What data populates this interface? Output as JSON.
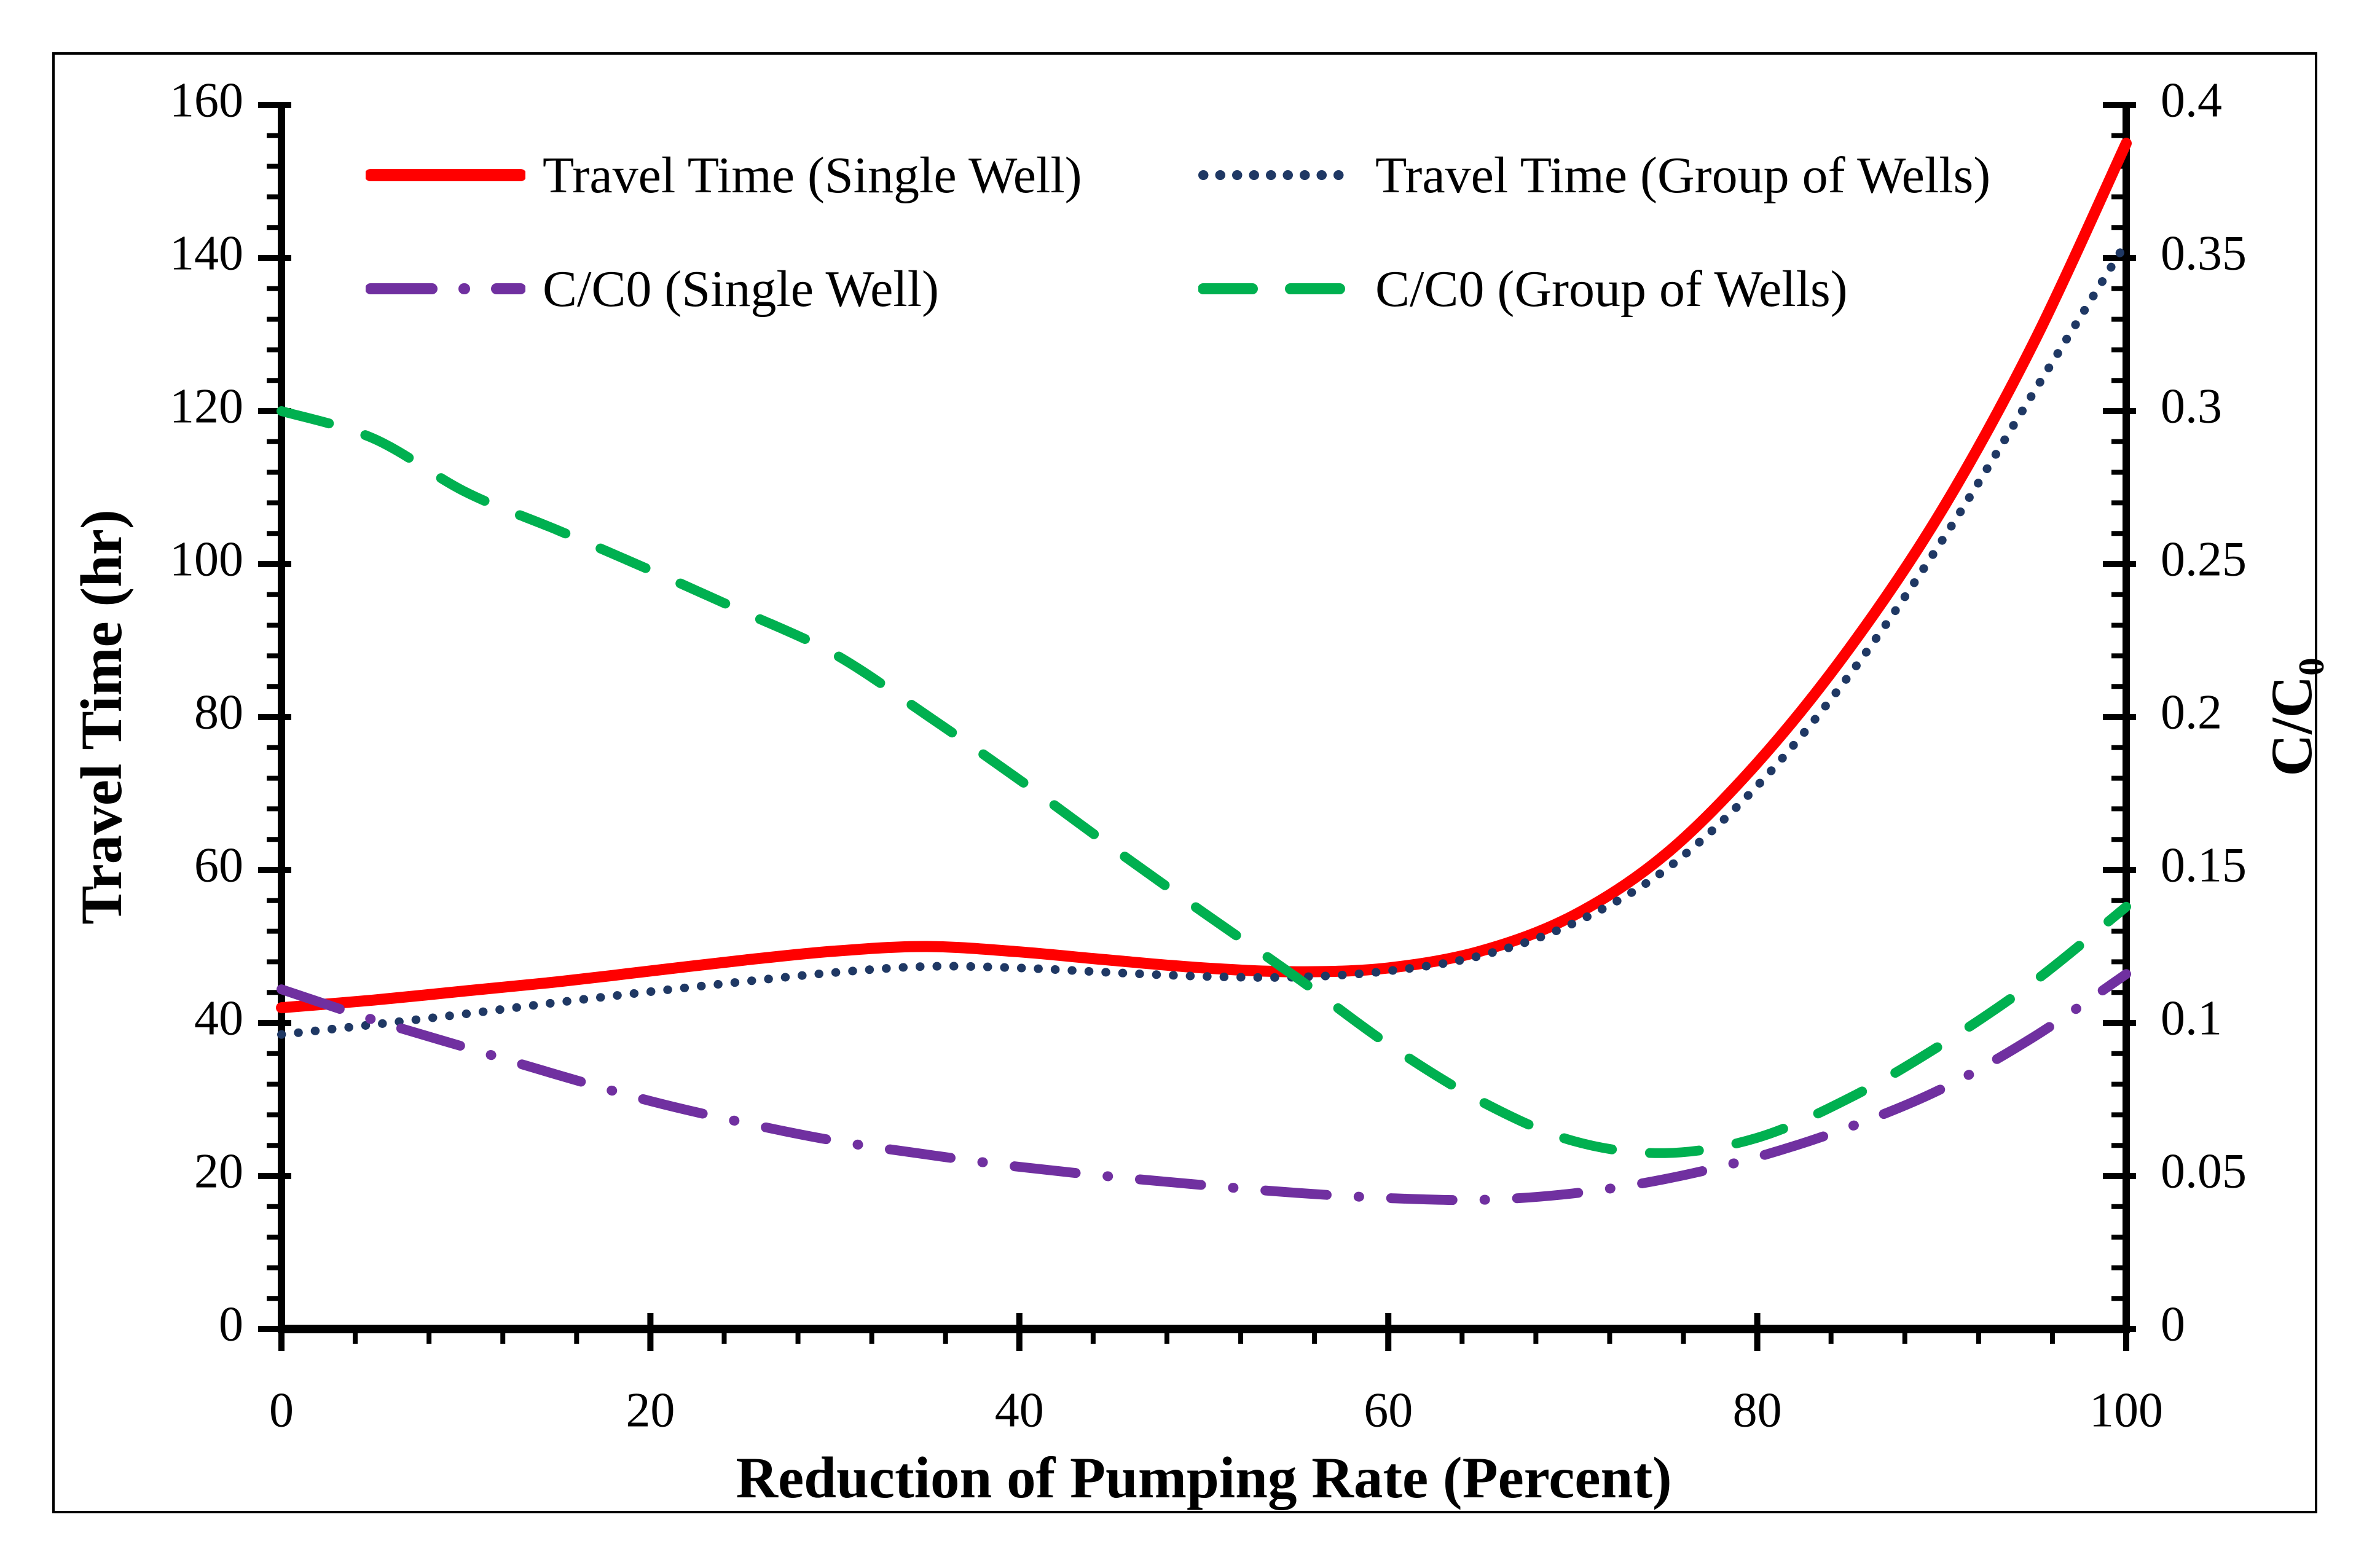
{
  "figure": {
    "background": "#ffffff",
    "frame_color": "#000000",
    "text_color": "#000000"
  },
  "chart_data": {
    "type": "line",
    "title": "",
    "xlabel": "Reduction of Pumping Rate (Percent)",
    "ylabel_left": "Travel Time (hr)",
    "ylabel_right_base": "C/C",
    "ylabel_right_sub": "0",
    "grid": false,
    "legend_position": "top-inside-two-rows",
    "x_axis": {
      "range": [
        0,
        100
      ],
      "major": 20,
      "minor": 4,
      "tick_labels": [
        "0",
        "20",
        "40",
        "60",
        "80",
        "100"
      ]
    },
    "y_axis_left": {
      "range": [
        0,
        160
      ],
      "major": 20,
      "minor": 4,
      "tick_labels": [
        "0",
        "20",
        "40",
        "60",
        "80",
        "100",
        "120",
        "140",
        "160"
      ]
    },
    "y_axis_right": {
      "range": [
        0,
        0.4
      ],
      "major": 0.05,
      "minor": 0.01,
      "tick_labels": [
        "0",
        "0.05",
        "0.1",
        "0.15",
        "0.2",
        "0.25",
        "0.3",
        "0.35",
        "0.4"
      ]
    },
    "x": [
      0,
      5,
      10,
      15,
      20,
      25,
      30,
      35,
      40,
      45,
      50,
      55,
      60,
      65,
      70,
      75,
      80,
      85,
      90,
      95,
      100
    ],
    "series": [
      {
        "name": "Travel Time (Single Well)",
        "axis": "left",
        "color": "#FF0000",
        "style": "solid",
        "values": [
          42,
          43,
          44.2,
          45.4,
          46.8,
          48.2,
          49.4,
          50,
          49.3,
          48.2,
          47.2,
          46.7,
          47.2,
          49.4,
          54,
          62,
          74,
          89,
          107,
          129,
          155
        ]
      },
      {
        "name": "Travel Time (Group of Wells)",
        "axis": "left",
        "color": "#1F3864",
        "style": "dotted",
        "values": [
          38.5,
          39.8,
          41.2,
          42.7,
          44.1,
          45.4,
          46.6,
          47.4,
          47.2,
          46.6,
          46.1,
          46,
          46.8,
          48.8,
          53,
          60,
          71,
          85.5,
          103,
          122.5,
          142
        ]
      },
      {
        "name": "C/C0 (Single Well)",
        "axis": "right",
        "color": "#7030A0",
        "style": "dashdot",
        "values": [
          0.111,
          0.101,
          0.092,
          0.083,
          0.0745,
          0.0675,
          0.0615,
          0.057,
          0.053,
          0.0498,
          0.047,
          0.0445,
          0.0428,
          0.0422,
          0.0443,
          0.049,
          0.0562,
          0.066,
          0.0785,
          0.0955,
          0.116
        ]
      },
      {
        "name": "C/C0 (Group of Wells)",
        "axis": "right",
        "color": "#00B050",
        "style": "dashed",
        "values": [
          0.3,
          0.291,
          0.2735,
          0.261,
          0.248,
          0.2345,
          0.2205,
          0.2005,
          0.1795,
          0.1575,
          0.136,
          0.115,
          0.093,
          0.0745,
          0.0615,
          0.0575,
          0.0625,
          0.0755,
          0.093,
          0.1135,
          0.138
        ]
      }
    ]
  }
}
